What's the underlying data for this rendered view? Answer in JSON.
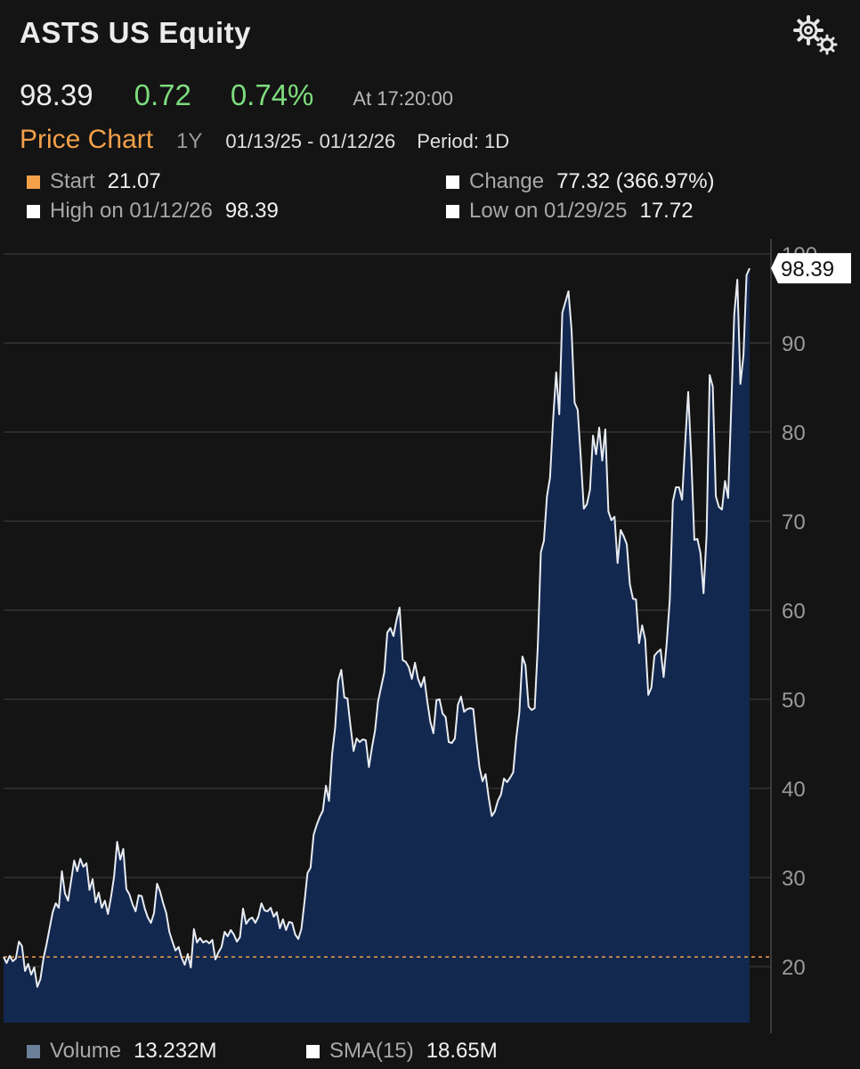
{
  "header": {
    "title": "ASTS US Equity",
    "settings_icon": "gears-icon"
  },
  "quote": {
    "last": "98.39",
    "change": "0.72",
    "change_pct": "0.74%",
    "time": "At 17:20:00",
    "change_color": "#7ddc7d"
  },
  "chart_header": {
    "name": "Price Chart",
    "range": "1Y",
    "dates": "01/13/25 - 01/12/26",
    "period": "Period: 1D"
  },
  "stats": {
    "start": {
      "label": "Start",
      "value": "21.07",
      "color": "#f2a04a"
    },
    "change": {
      "label": "Change",
      "value": "77.32 (366.97%)",
      "color": "#ffffff"
    },
    "high": {
      "label": "High on 01/12/26",
      "value": "98.39",
      "color": "#ffffff"
    },
    "low": {
      "label": "Low on 01/29/25",
      "value": "17.72",
      "color": "#ffffff"
    }
  },
  "legend": {
    "volume": {
      "label": "Volume",
      "value": "13.232M",
      "color": "#6c7f99"
    },
    "sma": {
      "label": "SMA(15)",
      "value": "18.65M",
      "color": "#ffffff"
    }
  },
  "chart_data": {
    "type": "area",
    "y_ticks": [
      "20",
      "30",
      "40",
      "50",
      "60",
      "70",
      "80",
      "90",
      "100"
    ],
    "ylim": [
      13,
      100
    ],
    "reference_line": 21.07,
    "last_label": "98.39",
    "grid": true,
    "colors": {
      "line": "#e8ecf2",
      "fill": "#13284f",
      "reference": "#f2a04a"
    },
    "series": [
      {
        "values": [
          21.1,
          20.4,
          21.2,
          20.6,
          20.9,
          22.8,
          22.3,
          19.5,
          20.3,
          19.1,
          19.9,
          17.72,
          18.6,
          20.9,
          22.5,
          24.3,
          26.1,
          27.1,
          26.6,
          30.7,
          28.2,
          27.4,
          29.6,
          31.9,
          30.7,
          32.1,
          31.2,
          31.6,
          28.6,
          29.8,
          27.2,
          28.3,
          26.6,
          27.4,
          25.9,
          27.8,
          30.1,
          34.0,
          32.0,
          33.2,
          28.7,
          28.1,
          27.0,
          26.2,
          28.0,
          27.9,
          26.5,
          25.5,
          24.9,
          26.0,
          29.3,
          28.4,
          27.1,
          26.0,
          23.9,
          22.8,
          21.8,
          22.2,
          21.0,
          20.2,
          21.4,
          19.9,
          24.2,
          22.7,
          23.2,
          22.7,
          22.9,
          22.6,
          23.0,
          20.8,
          21.6,
          22.2,
          23.9,
          23.4,
          24.1,
          23.6,
          22.8,
          23.3,
          26.5,
          24.8,
          25.3,
          25.5,
          24.9,
          25.6,
          27.1,
          26.3,
          26.2,
          26.6,
          25.6,
          26.1,
          24.3,
          25.3,
          24.1,
          25.0,
          24.9,
          23.6,
          23.1,
          24.2,
          27.2,
          30.5,
          31.1,
          34.8,
          35.9,
          36.8,
          37.5,
          40.3,
          38.6,
          43.8,
          46.8,
          52.1,
          53.3,
          50.2,
          50.1,
          47.0,
          44.2,
          45.6,
          45.2,
          45.5,
          45.4,
          42.4,
          44.6,
          46.5,
          49.8,
          51.4,
          53.0,
          57.5,
          58.0,
          57.1,
          58.9,
          60.3,
          54.4,
          54.2,
          53.6,
          52.3,
          54.1,
          52.3,
          51.4,
          52.5,
          49.8,
          47.5,
          46.2,
          49.9,
          50.0,
          48.4,
          48.0,
          45.2,
          45.1,
          45.6,
          49.4,
          50.3,
          48.6,
          48.9,
          49.0,
          48.9,
          45.5,
          42.4,
          40.8,
          41.6,
          39.0,
          36.9,
          37.4,
          38.6,
          39.3,
          41.1,
          40.7,
          41.2,
          41.8,
          45.7,
          48.5,
          54.8,
          53.8,
          49.2,
          48.8,
          49.0,
          55.9,
          66.5,
          67.8,
          72.8,
          74.9,
          81.4,
          86.7,
          82.0,
          93.4,
          94.6,
          95.8,
          91.5,
          83.3,
          82.5,
          77.2,
          71.4,
          71.9,
          73.5,
          79.6,
          77.5,
          80.5,
          76.8,
          80.3,
          71.1,
          70.1,
          70.5,
          65.3,
          69.0,
          68.3,
          67.4,
          62.9,
          61.3,
          61.2,
          56.3,
          58.3,
          56.7,
          50.5,
          51.3,
          54.9,
          55.3,
          55.6,
          52.5,
          56.3,
          61.2,
          72.2,
          73.8,
          73.8,
          72.4,
          78.7,
          84.5,
          77.1,
          67.9,
          68.0,
          66.4,
          61.9,
          68.5,
          86.4,
          85.1,
          72.8,
          71.6,
          71.3,
          74.5,
          72.6,
          82.6,
          93.2,
          97.1,
          85.4,
          88.6,
          97.6,
          98.39
        ]
      }
    ]
  }
}
